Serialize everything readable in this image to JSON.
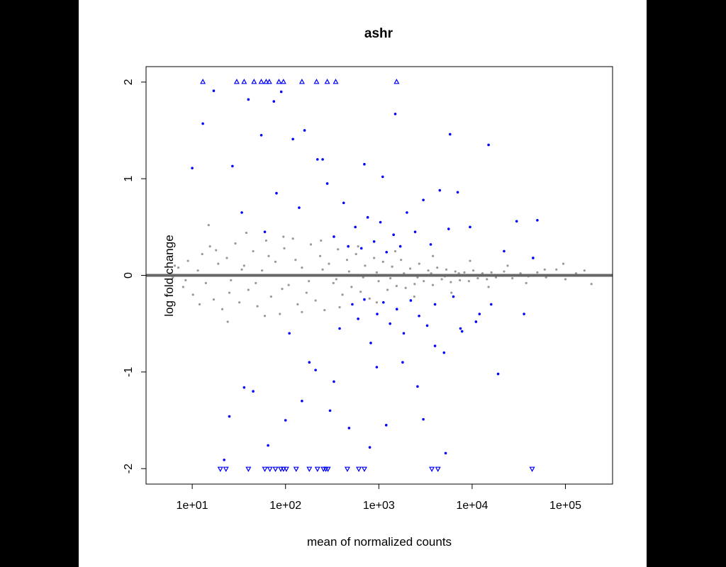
{
  "chart_data": {
    "type": "scatter",
    "title": "ashr",
    "xlabel": "mean of normalized counts",
    "ylabel": "log fold change",
    "x_scale": "log10",
    "xlim": [
      3.2,
      320000
    ],
    "ylim": [
      -2.16,
      2.16
    ],
    "x_ticks": [
      {
        "value": 10,
        "label": "1e+01"
      },
      {
        "value": 100,
        "label": "1e+02"
      },
      {
        "value": 1000,
        "label": "1e+03"
      },
      {
        "value": 10000,
        "label": "1e+04"
      },
      {
        "value": 100000,
        "label": "1e+05"
      }
    ],
    "y_ticks": [
      {
        "value": 2,
        "label": "2"
      },
      {
        "value": 1,
        "label": "1"
      },
      {
        "value": 0,
        "label": "0"
      },
      {
        "value": -1,
        "label": "-1"
      },
      {
        "value": -2,
        "label": "-2"
      }
    ],
    "grid": false,
    "legend": "none",
    "reference_line": {
      "y": 0,
      "color": "#666666"
    },
    "colors": {
      "nonsignificant": "#999999",
      "significant": "#0000ff"
    },
    "series": [
      {
        "points": [
          [
            6.2,
            -0.02
          ],
          [
            7.1,
            0.08
          ],
          [
            8.0,
            -0.12
          ],
          [
            9.0,
            0.15
          ],
          [
            10.2,
            -0.2
          ],
          [
            11.5,
            0.05
          ],
          [
            12.8,
            0.22
          ],
          [
            14.0,
            -0.08
          ],
          [
            15.5,
            0.3
          ],
          [
            17.0,
            -0.25
          ],
          [
            19.0,
            0.12
          ],
          [
            21.0,
            -0.35
          ],
          [
            23.5,
            0.18
          ],
          [
            26.0,
            -0.05
          ],
          [
            29.0,
            0.33
          ],
          [
            32.0,
            -0.28
          ],
          [
            36.0,
            0.1
          ],
          [
            40.0,
            -0.15
          ],
          [
            45.0,
            0.25
          ],
          [
            50.0,
            -0.32
          ],
          [
            56.0,
            0.05
          ],
          [
            62.0,
            0.36
          ],
          [
            70.0,
            -0.22
          ],
          [
            78.0,
            0.14
          ],
          [
            87.0,
            -0.4
          ],
          [
            97.0,
            0.28
          ],
          [
            108.0,
            -0.1
          ],
          [
            120.0,
            0.38
          ],
          [
            135.0,
            -0.3
          ],
          [
            150.0,
            0.08
          ],
          [
            168.0,
            -0.18
          ],
          [
            187.0,
            0.32
          ],
          [
            210.0,
            -0.26
          ],
          [
            235.0,
            0.2
          ],
          [
            262.0,
            -0.36
          ],
          [
            292.0,
            0.12
          ],
          [
            326.0,
            -0.08
          ],
          [
            365.0,
            0.27
          ],
          [
            408.0,
            -0.2
          ],
          [
            456.0,
            0.16
          ],
          [
            510.0,
            -0.12
          ],
          [
            570.0,
            0.22
          ],
          [
            638.0,
            -0.17
          ],
          [
            712.0,
            0.1
          ],
          [
            796.0,
            -0.24
          ],
          [
            890.0,
            0.18
          ],
          [
            995.0,
            -0.06
          ],
          [
            1110.0,
            0.14
          ],
          [
            1240.0,
            -0.15
          ],
          [
            1390.0,
            0.09
          ],
          [
            1550.0,
            -0.11
          ],
          [
            1730.0,
            0.16
          ],
          [
            1940.0,
            -0.13
          ],
          [
            2170.0,
            0.07
          ],
          [
            2420.0,
            -0.09
          ],
          [
            2710.0,
            0.12
          ],
          [
            3030.0,
            -0.06
          ],
          [
            3390.0,
            0.05
          ],
          [
            3790.0,
            -0.1
          ],
          [
            4230.0,
            0.08
          ],
          [
            4730.0,
            -0.04
          ],
          [
            5290.0,
            0.06
          ],
          [
            5910.0,
            -0.07
          ],
          [
            6610.0,
            0.04
          ],
          [
            7390.0,
            -0.05
          ],
          [
            8260.0,
            0.03
          ],
          [
            9240.0,
            -0.06
          ],
          [
            10300.0,
            0.05
          ],
          [
            11500.0,
            -0.03
          ],
          [
            12900.0,
            0.02
          ],
          [
            14400.0,
            -0.04
          ],
          [
            16100.0,
            0.03
          ],
          [
            18000.0,
            -0.02
          ],
          [
            22000.0,
            0.04
          ],
          [
            27000.0,
            -0.03
          ],
          [
            33000.0,
            0.02
          ],
          [
            40000.0,
            -0.01
          ],
          [
            50000.0,
            0.03
          ],
          [
            62000.0,
            -0.02
          ],
          [
            80000.0,
            0.06
          ],
          [
            100000.0,
            -0.04
          ],
          [
            130000.0,
            0.02
          ],
          [
            160000.0,
            0.05
          ],
          [
            190000.0,
            -0.09
          ],
          [
            6.5,
            0.1
          ],
          [
            8.5,
            -0.05
          ],
          [
            12.0,
            -0.3
          ],
          [
            18.0,
            0.26
          ],
          [
            25.0,
            -0.18
          ],
          [
            34.0,
            0.06
          ],
          [
            48.0,
            -0.08
          ],
          [
            66.0,
            0.2
          ],
          [
            92.0,
            -0.14
          ],
          [
            128.0,
            0.16
          ],
          [
            178.0,
            -0.06
          ],
          [
            250.0,
            0.06
          ],
          [
            350.0,
            -0.04
          ],
          [
            480.0,
            0.04
          ],
          [
            680.0,
            -0.02
          ],
          [
            950.0,
            0.03
          ],
          [
            1330.0,
            -0.03
          ],
          [
            1860.0,
            0.02
          ],
          [
            2600.0,
            -0.02
          ],
          [
            3640.0,
            0.02
          ],
          [
            5100.0,
            -0.01
          ],
          [
            7200.0,
            0.02
          ],
          [
            15.0,
            0.52
          ],
          [
            24.0,
            -0.48
          ],
          [
            38.0,
            0.44
          ],
          [
            60.0,
            -0.42
          ],
          [
            95.0,
            0.4
          ],
          [
            150.0,
            -0.38
          ],
          [
            240.0,
            0.36
          ],
          [
            380.0,
            -0.33
          ],
          [
            600.0,
            0.3
          ],
          [
            950.0,
            -0.28
          ],
          [
            1500.0,
            0.25
          ],
          [
            2400.0,
            -0.22
          ],
          [
            3800.0,
            0.2
          ],
          [
            6000.0,
            -0.18
          ],
          [
            9500.0,
            0.15
          ],
          [
            15000.0,
            -0.12
          ],
          [
            24000.0,
            0.1
          ],
          [
            38000.0,
            -0.08
          ],
          [
            60000.0,
            0.06
          ],
          [
            95000.0,
            0.12
          ]
        ]
      },
      {
        "points": [
          [
            10,
            1.11
          ],
          [
            13,
            1.57
          ],
          [
            17,
            1.91
          ],
          [
            22,
            -1.91
          ],
          [
            27,
            1.13
          ],
          [
            34,
            0.65
          ],
          [
            45,
            -1.2
          ],
          [
            60,
            0.45
          ],
          [
            80,
            0.85
          ],
          [
            110,
            -0.6
          ],
          [
            140,
            0.7
          ],
          [
            180,
            -0.9
          ],
          [
            220,
            1.2
          ],
          [
            280,
            0.95
          ],
          [
            330,
            0.4
          ],
          [
            380,
            -0.55
          ],
          [
            420,
            0.75
          ],
          [
            470,
            0.3
          ],
          [
            520,
            -0.3
          ],
          [
            560,
            0.5
          ],
          [
            600,
            -0.45
          ],
          [
            650,
            0.28
          ],
          [
            700,
            -0.25
          ],
          [
            760,
            0.6
          ],
          [
            820,
            -0.7
          ],
          [
            890,
            0.35
          ],
          [
            960,
            -0.4
          ],
          [
            1040,
            0.55
          ],
          [
            1120,
            -0.28
          ],
          [
            1210,
            0.24
          ],
          [
            1320,
            -0.5
          ],
          [
            1440,
            0.42
          ],
          [
            1560,
            -0.35
          ],
          [
            1700,
            0.3
          ],
          [
            1850,
            -0.6
          ],
          [
            2000,
            0.65
          ],
          [
            2200,
            -0.26
          ],
          [
            2450,
            0.45
          ],
          [
            2700,
            -0.42
          ],
          [
            3000,
            0.78
          ],
          [
            3300,
            -0.52
          ],
          [
            3600,
            0.32
          ],
          [
            4000,
            -0.3
          ],
          [
            4500,
            0.88
          ],
          [
            5000,
            -0.8
          ],
          [
            5600,
            0.48
          ],
          [
            6300,
            -0.22
          ],
          [
            7000,
            0.86
          ],
          [
            7800,
            -0.58
          ],
          [
            9500,
            0.5
          ],
          [
            12000,
            -0.4
          ],
          [
            15000,
            1.35
          ],
          [
            19000,
            -1.02
          ],
          [
            22000,
            0.25
          ],
          [
            30000,
            0.56
          ],
          [
            36000,
            -0.4
          ],
          [
            45000,
            0.18
          ],
          [
            50000,
            0.57
          ],
          [
            40,
            1.82
          ],
          [
            55,
            1.45
          ],
          [
            75,
            1.8
          ],
          [
            90,
            1.9
          ],
          [
            120,
            1.41
          ],
          [
            160,
            1.5
          ],
          [
            250,
            1.2
          ],
          [
            700,
            1.15
          ],
          [
            1100,
            1.02
          ],
          [
            1500,
            1.67
          ],
          [
            5800,
            1.46
          ],
          [
            150,
            -1.3
          ],
          [
            300,
            -1.4
          ],
          [
            480,
            -1.58
          ],
          [
            800,
            -1.78
          ],
          [
            1200,
            -1.55
          ],
          [
            3000,
            -1.49
          ],
          [
            5200,
            -1.84
          ],
          [
            25,
            -1.46
          ],
          [
            36,
            -1.16
          ],
          [
            65,
            -1.76
          ],
          [
            100,
            -1.5
          ],
          [
            210,
            -0.98
          ],
          [
            330,
            -1.1
          ],
          [
            950,
            -0.95
          ],
          [
            1800,
            -0.9
          ],
          [
            2600,
            -1.15
          ],
          [
            4000,
            -0.73
          ],
          [
            7500,
            -0.55
          ],
          [
            11000,
            -0.48
          ],
          [
            16000,
            -0.3
          ],
          [
            13,
            2
          ],
          [
            30,
            2
          ],
          [
            36,
            2
          ],
          [
            46,
            2
          ],
          [
            55,
            2
          ],
          [
            62,
            2
          ],
          [
            67,
            2
          ],
          [
            85,
            2
          ],
          [
            95,
            2
          ],
          [
            150,
            2
          ],
          [
            215,
            2
          ],
          [
            280,
            2
          ],
          [
            345,
            2
          ],
          [
            1550,
            2
          ],
          [
            20,
            -2
          ],
          [
            23,
            -2
          ],
          [
            40,
            -2
          ],
          [
            60,
            -2
          ],
          [
            68,
            -2
          ],
          [
            78,
            -2
          ],
          [
            89,
            -2
          ],
          [
            95,
            -2
          ],
          [
            102,
            -2
          ],
          [
            130,
            -2
          ],
          [
            180,
            -2
          ],
          [
            220,
            -2
          ],
          [
            255,
            -2
          ],
          [
            270,
            -2
          ],
          [
            285,
            -2
          ],
          [
            460,
            -2
          ],
          [
            610,
            -2
          ],
          [
            700,
            -2
          ],
          [
            3700,
            -2
          ],
          [
            4300,
            -2
          ],
          [
            44000,
            -2
          ]
        ]
      }
    ]
  }
}
